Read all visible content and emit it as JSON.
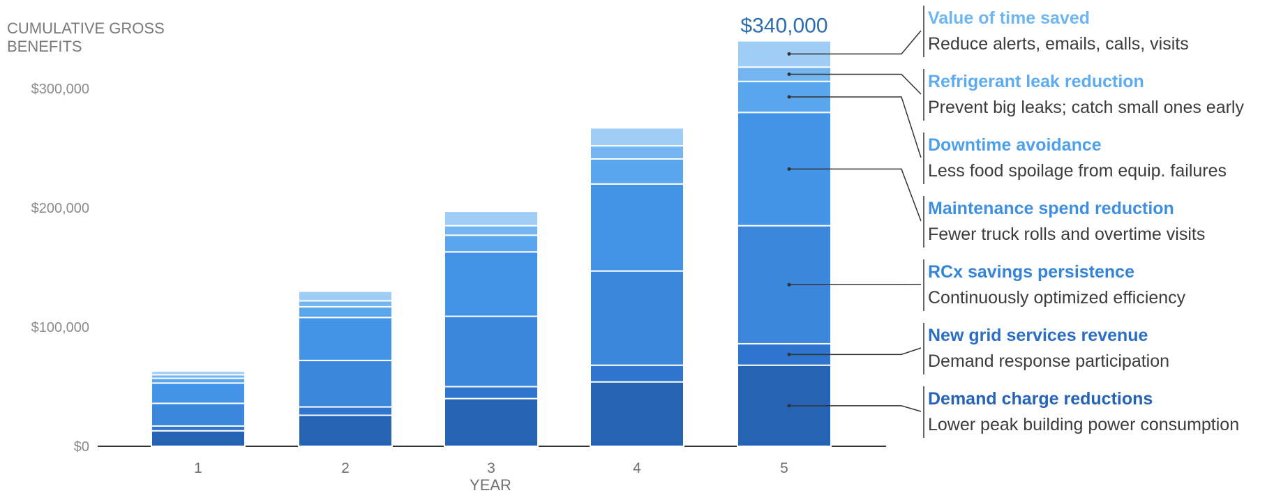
{
  "chart_data": {
    "type": "bar",
    "stacked": true,
    "ylabel": "CUMULATIVE GROSS BENEFITS",
    "xlabel": "YEAR",
    "categories": [
      "1",
      "2",
      "3",
      "4",
      "5"
    ],
    "ylim": [
      0,
      340000
    ],
    "yticks": [
      0,
      100000,
      200000,
      300000
    ],
    "ytick_labels": [
      "$0",
      "$100,000",
      "$200,000",
      "$300,000"
    ],
    "grid": false,
    "total_label": "$340,000",
    "series": [
      {
        "name": "Demand charge reductions",
        "description": "Lower peak building power consumption",
        "color": "#2563b5",
        "label_color": "#2563b5",
        "values": [
          13000,
          26000,
          40000,
          54000,
          68000
        ]
      },
      {
        "name": "New grid services revenue",
        "description": "Demand response participation",
        "color": "#2f74cf",
        "label_color": "#2a6fc4",
        "values": [
          4000,
          7000,
          10000,
          14000,
          18000
        ]
      },
      {
        "name": "RCx savings persistence",
        "description": "Continuously optimized efficiency",
        "color": "#3a87dc",
        "label_color": "#3584d6",
        "values": [
          19000,
          39000,
          59000,
          79000,
          99000
        ]
      },
      {
        "name": "Maintenance spend reduction",
        "description": "Fewer truck rolls and overtime visits",
        "color": "#4394e6",
        "label_color": "#3f8fe0",
        "values": [
          17000,
          36000,
          54000,
          73000,
          95000
        ]
      },
      {
        "name": "Downtime avoidance",
        "description": "Less food spoilage from equip. failures",
        "color": "#5aa6ec",
        "label_color": "#4fa0ea",
        "values": [
          4000,
          9000,
          14000,
          21000,
          26000
        ]
      },
      {
        "name": "Refrigerant leak reduction",
        "description": "Prevent big leaks; catch small ones early",
        "color": "#72b5f0",
        "label_color": "#5eabee",
        "values": [
          3000,
          5000,
          8000,
          11000,
          12000
        ]
      },
      {
        "name": "Value of time saved",
        "description": "Reduce alerts, emails, calls, visits",
        "color": "#9fcdf6",
        "label_color": "#6fb5f0",
        "values": [
          3000,
          8000,
          12000,
          15000,
          22000
        ]
      }
    ]
  }
}
